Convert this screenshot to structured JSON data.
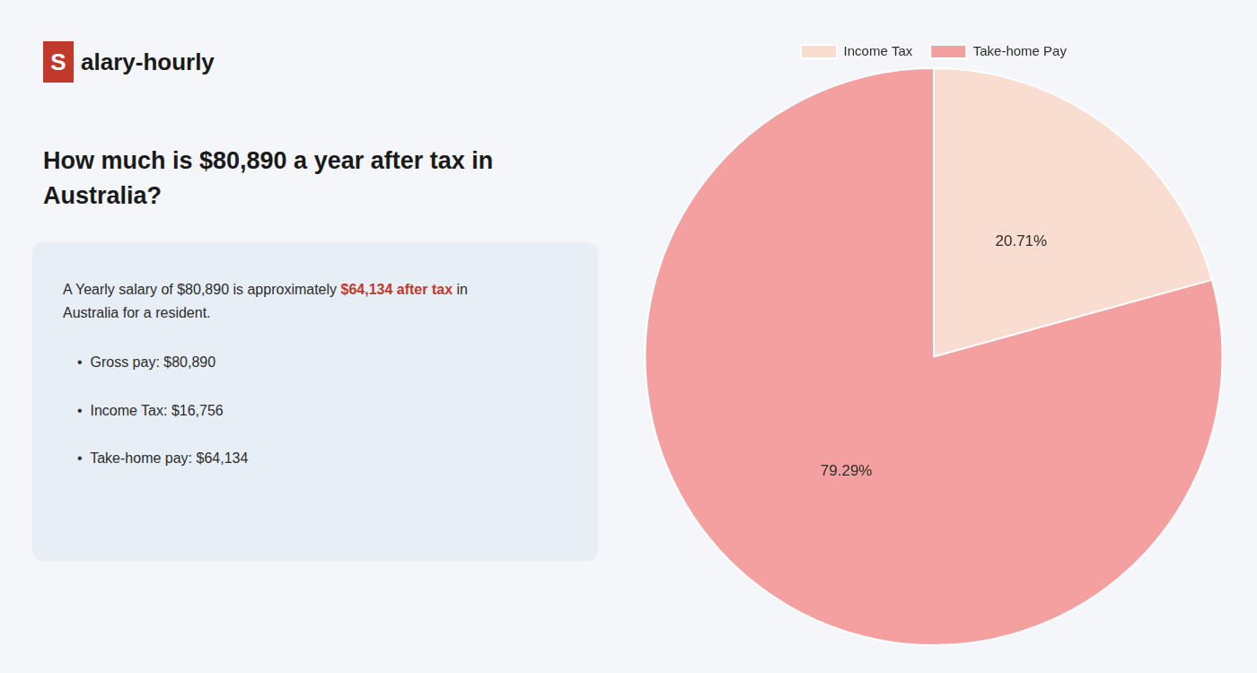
{
  "chart_data": {
    "type": "pie",
    "title": "How much is $80,890 a year after tax in\nAustralia?",
    "categories": [
      "Income Tax",
      "Take-home Pay"
    ],
    "values": [
      20.71,
      79.29
    ],
    "value_labels": [
      "20.71%",
      "79.29%"
    ],
    "data_labels": true,
    "colors": [
      "#f9ddd0",
      "#f4a0a0"
    ],
    "legend": "top",
    "annotations": [
      "S",
      "alary-hourly",
      "A Yearly salary of $80,890 is approximately ",
      "$64,134 after tax",
      " in",
      "Australia for a resident.",
      "•  Gross pay: $80,890",
      "•  Income Tax: $16,756",
      "•  Take-home pay: $64,134"
    ]
  }
}
